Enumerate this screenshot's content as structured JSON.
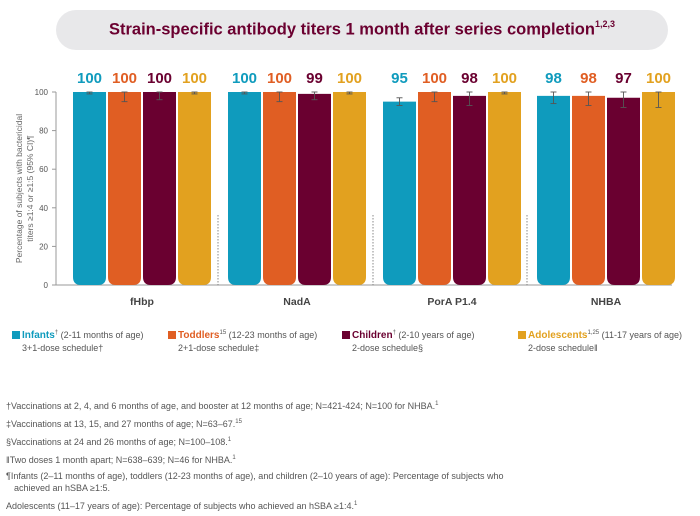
{
  "header": {
    "title": "Strain-specific antibody titers 1 month after series completion",
    "title_sup": "1,2,3"
  },
  "colors": {
    "infants": "#0f9bbd",
    "toddlers": "#e05e23",
    "children": "#6a0030",
    "adolescents": "#e2a11f",
    "title": "#6b0030"
  },
  "chart_data": {
    "type": "bar",
    "title": "Strain-specific antibody titers 1 month after series completion",
    "ylabel_line1": "Percentage of subjects with bactericidal",
    "ylabel_line2": "titers ≥1:4 or ≥1:5 (95% CI)¶",
    "ylim": [
      0,
      100
    ],
    "yticks": [
      0,
      20,
      40,
      60,
      80,
      100
    ],
    "categories": [
      "fHbp",
      "NadA",
      "PorA P1.4",
      "NHBA"
    ],
    "series": [
      {
        "name": "Infants",
        "color_key": "infants",
        "values": [
          100,
          100,
          95,
          98
        ],
        "ci": [
          [
            99,
            100
          ],
          [
            99,
            100
          ],
          [
            93,
            97
          ],
          [
            94,
            100
          ]
        ]
      },
      {
        "name": "Toddlers",
        "color_key": "toddlers",
        "values": [
          100,
          100,
          100,
          98
        ],
        "ci": [
          [
            95,
            100
          ],
          [
            95,
            100
          ],
          [
            95,
            100
          ],
          [
            93,
            100
          ]
        ]
      },
      {
        "name": "Children",
        "color_key": "children",
        "values": [
          100,
          99,
          98,
          97
        ],
        "ci": [
          [
            96,
            100
          ],
          [
            96,
            100
          ],
          [
            93,
            100
          ],
          [
            92,
            100
          ]
        ]
      },
      {
        "name": "Adolescents",
        "color_key": "adolescents",
        "values": [
          100,
          100,
          100,
          100
        ],
        "ci": [
          [
            99,
            100
          ],
          [
            99,
            100
          ],
          [
            99,
            100
          ],
          [
            92,
            100
          ]
        ]
      }
    ],
    "grid": false,
    "legend_position": "bottom"
  },
  "legend": [
    {
      "label": "Infants",
      "sup": "†",
      "desc": " (2-11 months of age)",
      "schedule": "3+1-dose schedule†",
      "color_key": "infants"
    },
    {
      "label": "Toddlers",
      "sup": "15",
      "desc": " (12-23 months of age)",
      "schedule": "2+1-dose schedule‡",
      "color_key": "toddlers"
    },
    {
      "label": "Children",
      "sup": "†",
      "desc": " (2-10 years of age)",
      "schedule": "2-dose schedule§",
      "color_key": "children"
    },
    {
      "label": "Adolescents",
      "sup": "1,25",
      "desc": " (11-17 years of age)",
      "schedule": "2-dose schedule‖",
      "color_key": "adolescents"
    }
  ],
  "footnotes": [
    {
      "text": "†Vaccinations at 2, 4, and 6 months of age, and booster at 12 months of age; N=421-424; N=100 for NHBA.",
      "sup": "1"
    },
    {
      "text": "‡Vaccinations at 13, 15, and 27 months of age; N=63–67.",
      "sup": "15"
    },
    {
      "text": "§Vaccinations at 24 and 26 months of age; N=100–108.",
      "sup": "1"
    },
    {
      "text": "‖Two doses 1 month apart; N=638–639; N=46 for NHBA.",
      "sup": "1"
    },
    {
      "text": "¶Infants (2–11 months of age), toddlers (12-23 months of age), and children (2–10 years of age): Percentage of subjects who",
      "sup": ""
    },
    {
      "text": "achieved an hSBA ≥1:5.",
      "sup": "",
      "sub": true
    },
    {
      "text": "Adolescents (11–17 years of age): Percentage of subjects who achieved an hSBA ≥1:4.",
      "sup": "1",
      "last": true
    }
  ]
}
